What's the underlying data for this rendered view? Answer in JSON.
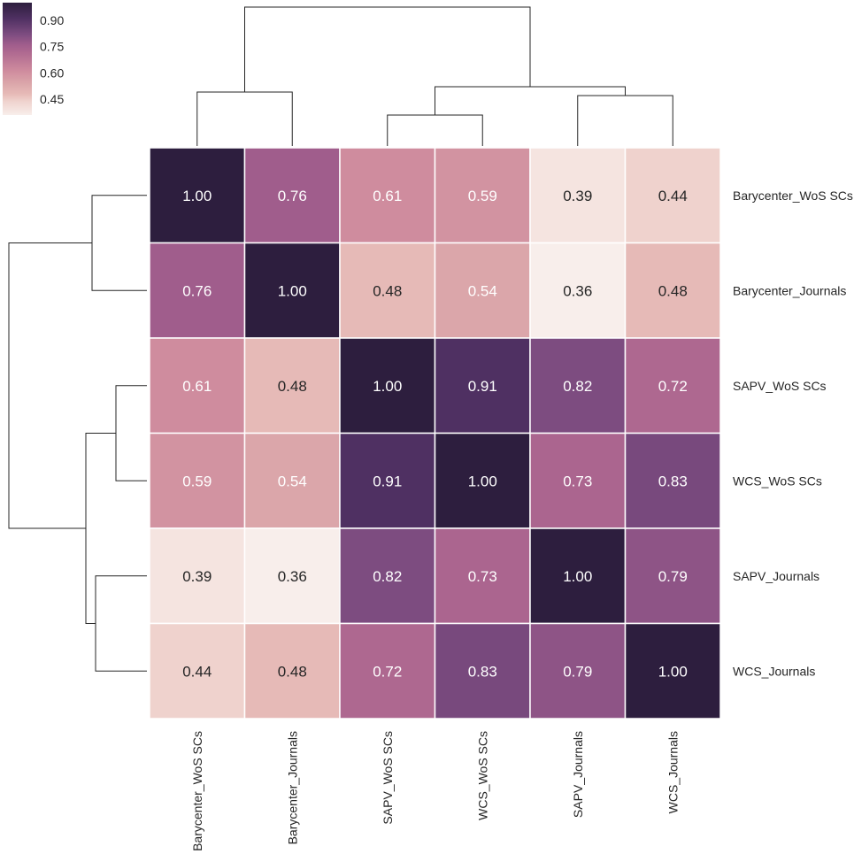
{
  "chart_data": {
    "type": "heatmap",
    "subtype": "clustermap",
    "title": "",
    "row_labels": [
      "Barycenter_WoS SCs",
      "Barycenter_Journals",
      "SAPV_WoS SCs",
      "WCS_WoS SCs",
      "SAPV_Journals",
      "WCS_Journals"
    ],
    "col_labels": [
      "Barycenter_WoS SCs",
      "Barycenter_Journals",
      "SAPV_WoS SCs",
      "WCS_WoS SCs",
      "SAPV_Journals",
      "WCS_Journals"
    ],
    "values": [
      [
        1.0,
        0.76,
        0.61,
        0.59,
        0.39,
        0.44
      ],
      [
        0.76,
        1.0,
        0.48,
        0.54,
        0.36,
        0.48
      ],
      [
        0.61,
        0.48,
        1.0,
        0.91,
        0.82,
        0.72
      ],
      [
        0.59,
        0.54,
        0.91,
        1.0,
        0.73,
        0.83
      ],
      [
        0.39,
        0.36,
        0.82,
        0.73,
        1.0,
        0.79
      ],
      [
        0.44,
        0.48,
        0.72,
        0.83,
        0.79,
        1.0
      ]
    ],
    "value_labels": [
      [
        "1.00",
        "0.76",
        "0.61",
        "0.59",
        "0.39",
        "0.44"
      ],
      [
        "0.76",
        "1.00",
        "0.48",
        "0.54",
        "0.36",
        "0.48"
      ],
      [
        "0.61",
        "0.48",
        "1.00",
        "0.91",
        "0.82",
        "0.72"
      ],
      [
        "0.59",
        "0.54",
        "0.91",
        "1.00",
        "0.73",
        "0.83"
      ],
      [
        "0.39",
        "0.36",
        "0.82",
        "0.73",
        "1.00",
        "0.79"
      ],
      [
        "0.44",
        "0.48",
        "0.72",
        "0.83",
        "0.79",
        "1.00"
      ]
    ],
    "colorbar": {
      "min": 0.36,
      "max": 1.0,
      "ticks": [
        "0.90",
        "0.75",
        "0.60",
        "0.45"
      ],
      "tick_values": [
        0.9,
        0.75,
        0.6,
        0.45
      ],
      "placement": "top-left"
    },
    "colormap": {
      "name": "cubehelix-light",
      "stops": [
        {
          "v": 0.36,
          "color": "#f8eeeb"
        },
        {
          "v": 0.44,
          "color": "#efd2cd"
        },
        {
          "v": 0.48,
          "color": "#e6bab7"
        },
        {
          "v": 0.54,
          "color": "#dba6aa"
        },
        {
          "v": 0.61,
          "color": "#cf8c9e"
        },
        {
          "v": 0.72,
          "color": "#ae6890"
        },
        {
          "v": 0.76,
          "color": "#a05d8c"
        },
        {
          "v": 0.82,
          "color": "#7d4c80"
        },
        {
          "v": 0.91,
          "color": "#4f3062"
        },
        {
          "v": 1.0,
          "color": "#2d1e3e"
        }
      ]
    },
    "text_light_above": 0.5,
    "text_colors": {
      "dark": "#262626",
      "light": "#ffffff"
    },
    "dendrogram": {
      "linkage": [
        {
          "left": 0,
          "right": 1
        },
        {
          "left": 2,
          "right": 3
        },
        {
          "left": 4,
          "right": 5
        },
        {
          "left": "23",
          "right": "45"
        },
        {
          "left": "01",
          "right": "2345"
        }
      ]
    }
  }
}
